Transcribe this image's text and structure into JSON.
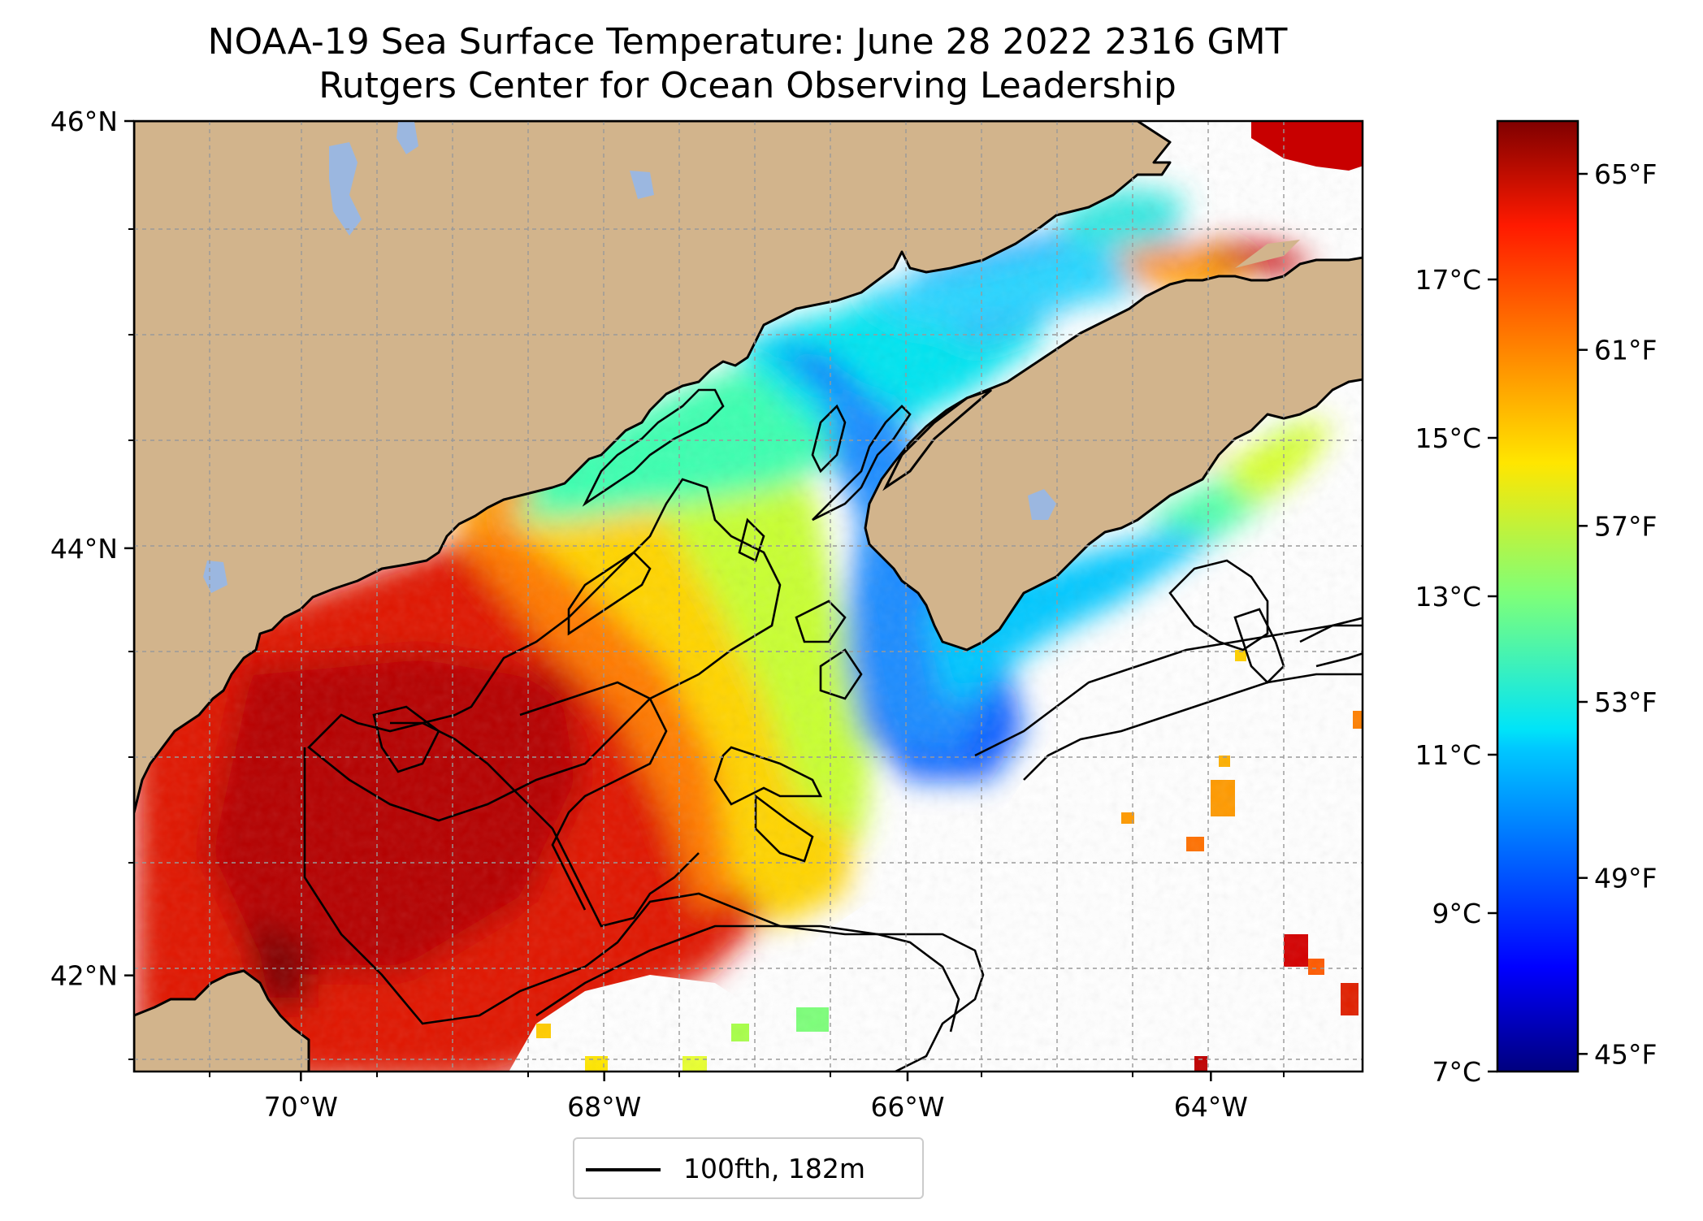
{
  "title": {
    "line1": "NOAA-19 Sea Surface Temperature: June 28 2022 2316 GMT",
    "line2": "Rutgers Center for Ocean Observing Leadership"
  },
  "map": {
    "extent": {
      "lon_min": -71.1,
      "lon_max": -63.0,
      "lat_min": 41.55,
      "lat_max": 46.0
    },
    "lat_ticks": [
      {
        "value": 46,
        "label": "46°N"
      },
      {
        "value": 44,
        "label": "44°N"
      },
      {
        "value": 42,
        "label": "42°N"
      }
    ],
    "lon_ticks": [
      {
        "value": -70,
        "label": "70°W"
      },
      {
        "value": -68,
        "label": "68°W"
      },
      {
        "value": -66,
        "label": "66°W"
      },
      {
        "value": -64,
        "label": "64°W"
      }
    ],
    "gridlines": true,
    "land_color": "#d2b48c",
    "lake_color": "#9bb7e0",
    "no_data_color": "#ffffff"
  },
  "colorbar": {
    "colormap": "jet",
    "celsius_range": [
      7,
      19
    ],
    "celsius_ticks": [
      "7°C",
      "9°C",
      "11°C",
      "13°C",
      "15°C",
      "17°C"
    ],
    "fahrenheit_ticks": [
      "45°F",
      "49°F",
      "53°F",
      "57°F",
      "61°F",
      "65°F"
    ],
    "fahrenheit_values": [
      45,
      49,
      53,
      57,
      61,
      65
    ]
  },
  "legend": {
    "entries": [
      {
        "label": "100fth, 182m",
        "line_color": "#000000"
      }
    ]
  }
}
